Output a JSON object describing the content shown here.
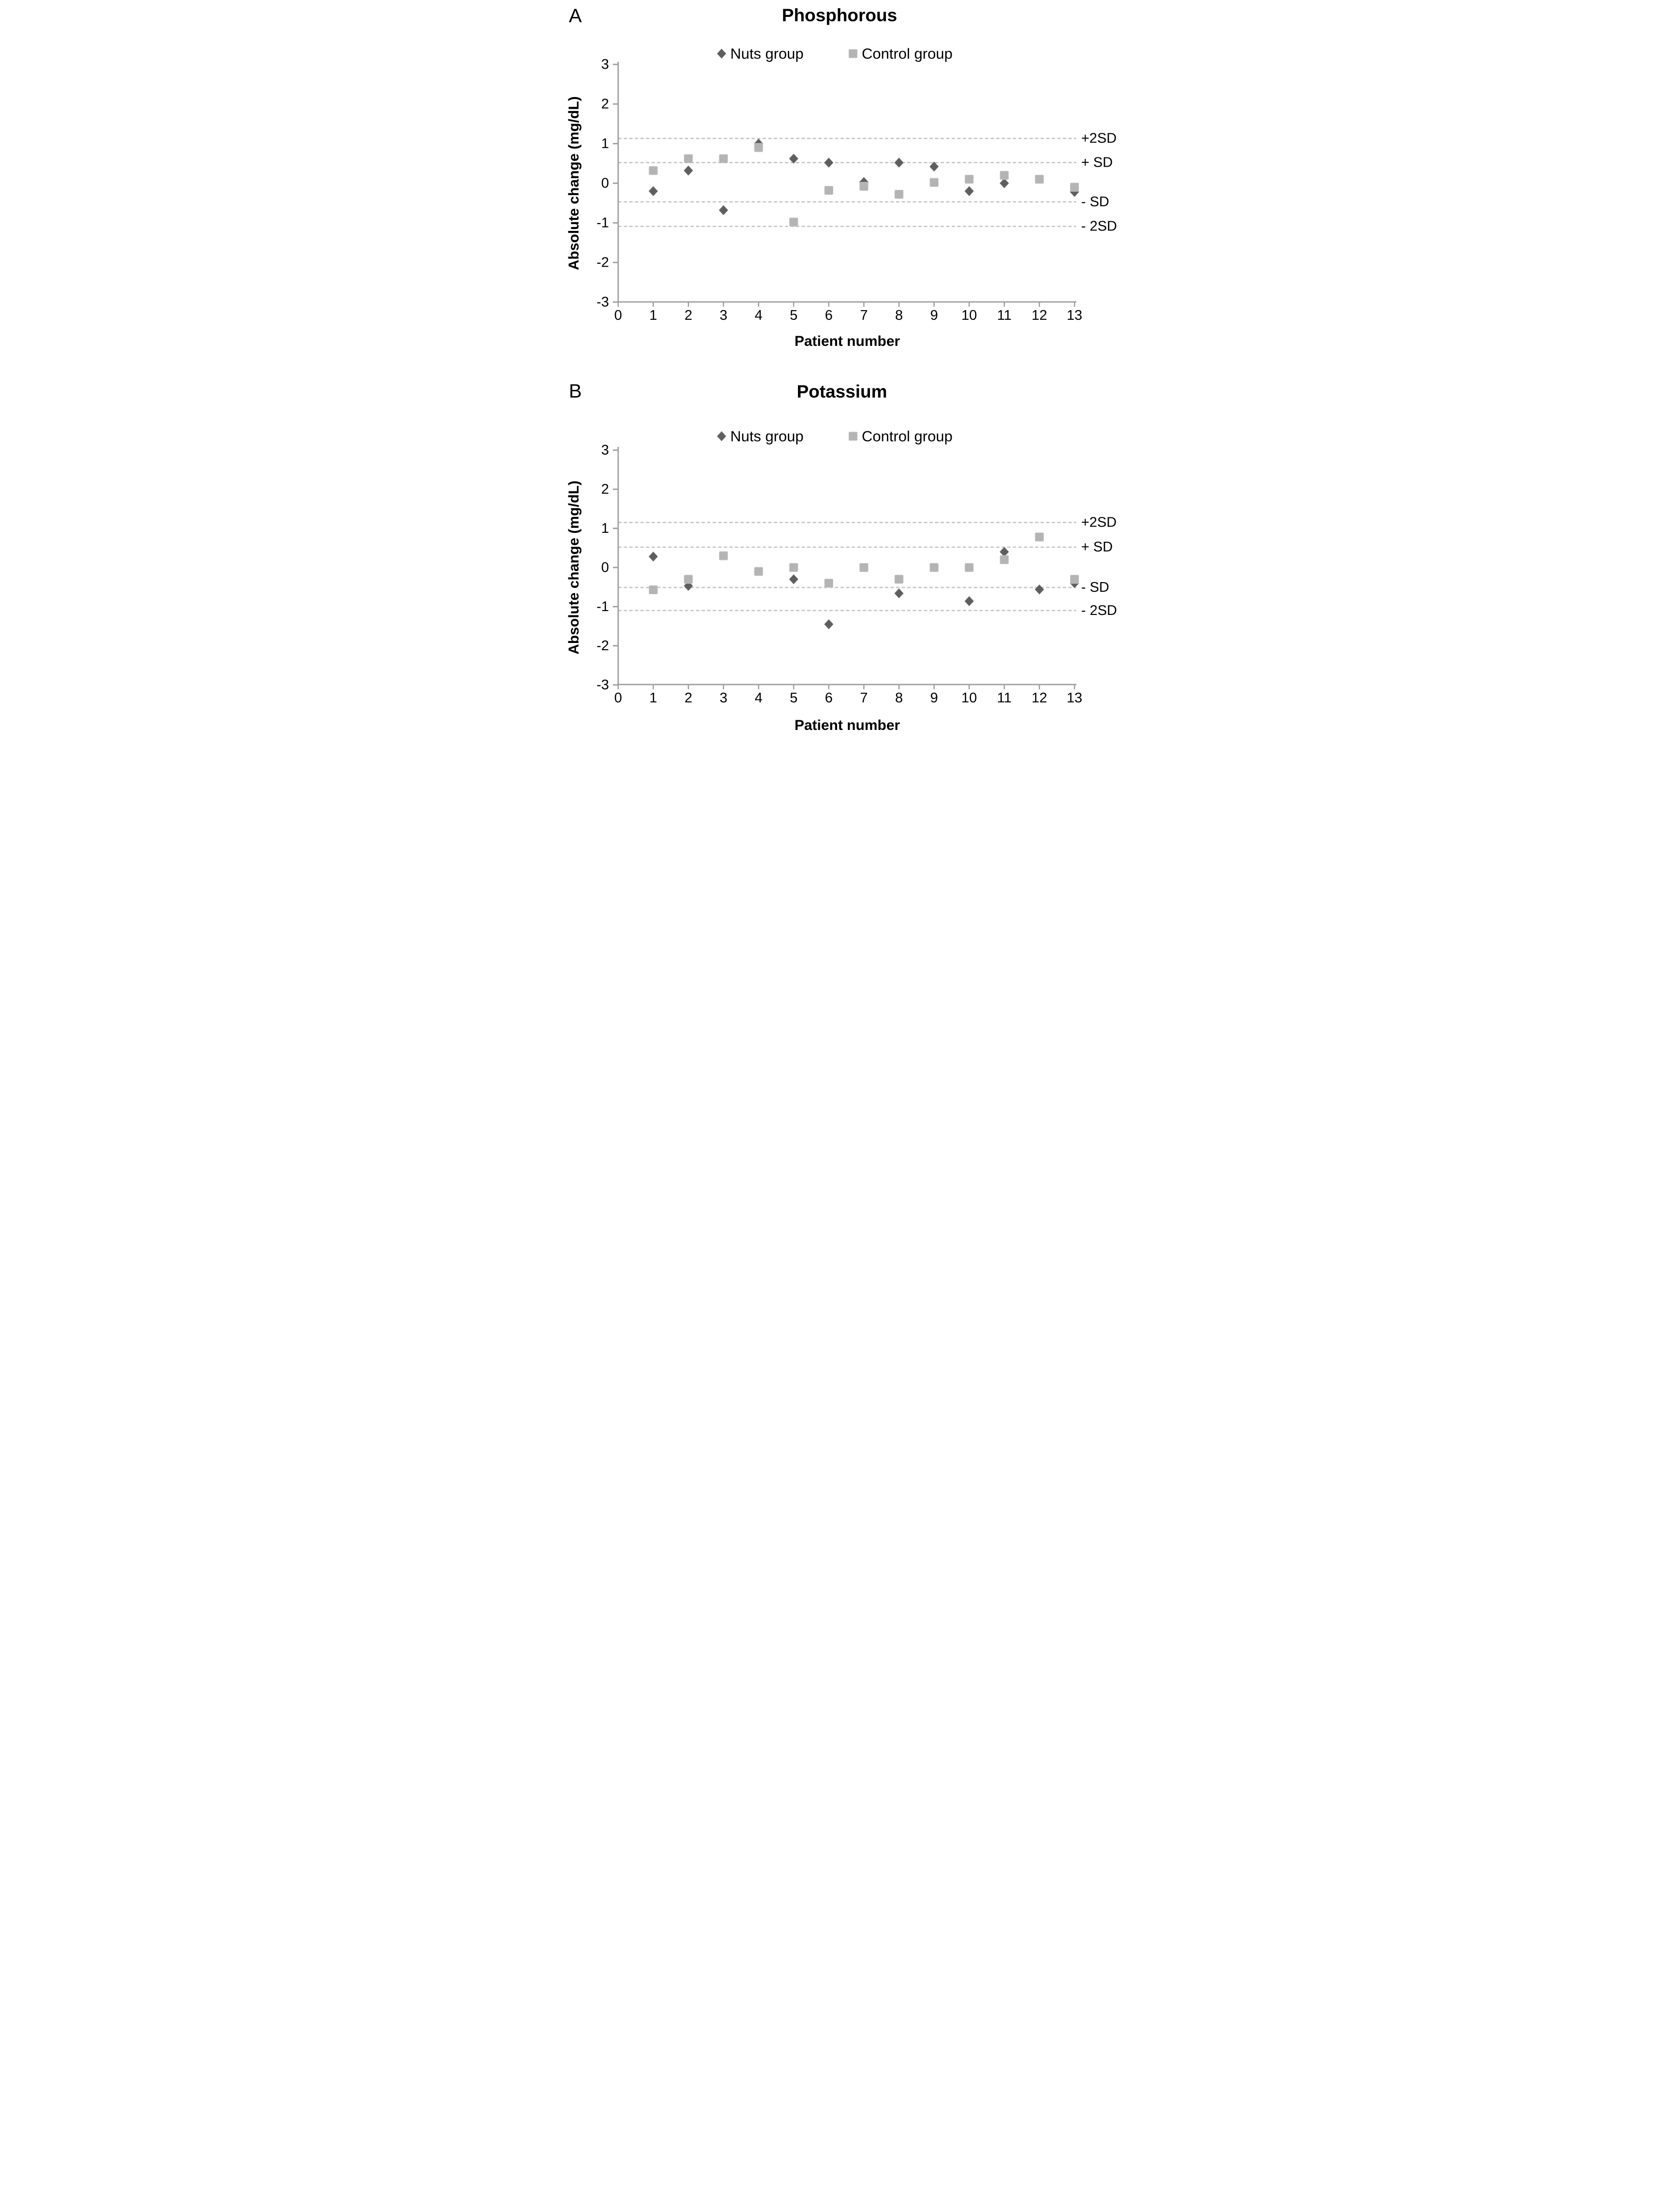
{
  "figure": {
    "panels": [
      {
        "panel_label": "A",
        "title": "Phosphorous"
      },
      {
        "panel_label": "B",
        "title": "Potassium"
      }
    ]
  },
  "colors": {
    "nuts_marker": "#5e5e5e",
    "nuts_marker_edge": "#6e6e6e",
    "control_marker": "#b4b4b4",
    "control_marker_edge": "#c3c3c3",
    "axis": "#9e9e9e",
    "reference_line": "#c7c7c7",
    "text": "#000000",
    "background": "#ffffff"
  },
  "chart_data": [
    {
      "type": "scatter",
      "title": "Phosphorous",
      "xlabel": "Patient number",
      "ylabel": "Absolute change (mg/dL)",
      "xlim": [
        0,
        13
      ],
      "ylim": [
        -3,
        3
      ],
      "xticks": [
        0,
        1,
        2,
        3,
        4,
        5,
        6,
        7,
        8,
        9,
        10,
        11,
        12,
        13
      ],
      "yticks": [
        3,
        2,
        1,
        0,
        -1,
        -2,
        -3
      ],
      "grid": "dashed horizontal reference lines only",
      "legend_position": "top-center",
      "categories": [
        1,
        2,
        3,
        4,
        5,
        6,
        7,
        8,
        9,
        10,
        11,
        12,
        13
      ],
      "series": [
        {
          "name": "Nuts group",
          "marker": "diamond",
          "values": [
            -0.2,
            0.32,
            -0.68,
            1.0,
            0.62,
            0.52,
            0.03,
            0.52,
            0.42,
            -0.2,
            0.0,
            null,
            -0.22
          ]
        },
        {
          "name": "Control group",
          "marker": "square",
          "values": [
            0.32,
            0.62,
            0.62,
            0.9,
            -0.98,
            -0.18,
            -0.08,
            -0.28,
            0.02,
            0.1,
            0.2,
            0.1,
            -0.1
          ]
        }
      ],
      "reference_lines": [
        {
          "label": "+2SD",
          "value": 1.13
        },
        {
          "label": "+ SD",
          "value": 0.52
        },
        {
          "label": "- SD",
          "value": -0.47
        },
        {
          "label": "- 2SD",
          "value": -1.09
        }
      ]
    },
    {
      "type": "scatter",
      "title": "Potassium",
      "xlabel": "Patient number",
      "ylabel": "Absolute change (mg/dL)",
      "xlim": [
        0,
        13
      ],
      "ylim": [
        -3,
        3
      ],
      "xticks": [
        0,
        1,
        2,
        3,
        4,
        5,
        6,
        7,
        8,
        9,
        10,
        11,
        12,
        13
      ],
      "yticks": [
        3,
        2,
        1,
        0,
        -1,
        -2,
        -3
      ],
      "grid": "dashed horizontal reference lines only",
      "legend_position": "top-center",
      "categories": [
        1,
        2,
        3,
        4,
        5,
        6,
        7,
        8,
        9,
        10,
        11,
        12,
        13
      ],
      "series": [
        {
          "name": "Nuts group",
          "marker": "diamond",
          "values": [
            0.28,
            -0.47,
            null,
            null,
            -0.3,
            -1.45,
            null,
            -0.66,
            null,
            -0.86,
            0.4,
            -0.56,
            -0.4
          ]
        },
        {
          "name": "Control group",
          "marker": "square",
          "values": [
            -0.57,
            -0.3,
            0.3,
            -0.1,
            0.0,
            -0.4,
            0.0,
            -0.3,
            0.0,
            0.0,
            0.2,
            0.78,
            -0.3
          ]
        }
      ],
      "reference_lines": [
        {
          "label": "+2SD",
          "value": 1.15
        },
        {
          "label": "+ SD",
          "value": 0.52
        },
        {
          "label": "- SD",
          "value": -0.51
        },
        {
          "label": "- 2SD",
          "value": -1.1
        }
      ]
    }
  ]
}
